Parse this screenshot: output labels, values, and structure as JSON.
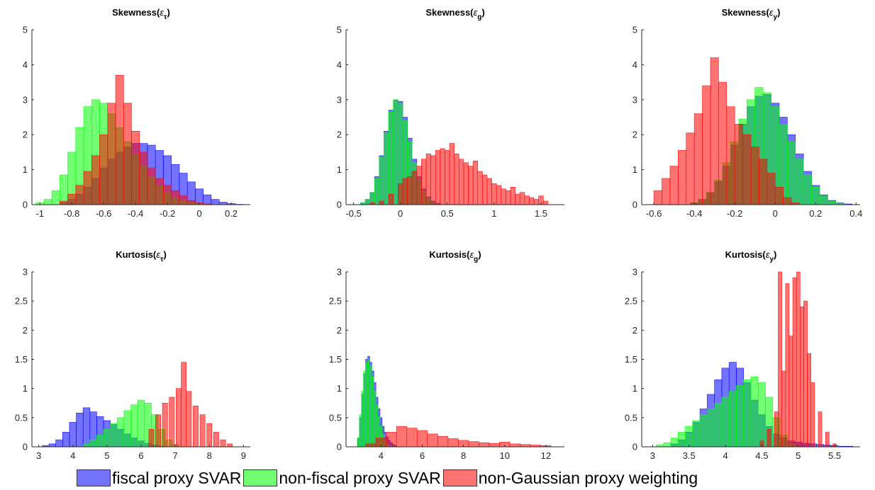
{
  "legend": {
    "items": [
      {
        "label": "fiscal proxy SVAR",
        "color": "#0000ff"
      },
      {
        "label": "non-fiscal proxy SVAR",
        "color": "#00ff00"
      },
      {
        "label": "non-Gaussian proxy weighting",
        "color": "#ff0000"
      }
    ]
  },
  "chart_data": [
    {
      "type": "bar",
      "title": "Skewness(ε_τ)",
      "title_parts": {
        "main": "Skewness(",
        "symbol": "ε",
        "sub": "τ",
        "close": ")"
      },
      "xlim": [
        -1.05,
        0.32
      ],
      "ylim": [
        0,
        5
      ],
      "xticks": [
        "-1",
        "-0.8",
        "-0.6",
        "-0.4",
        "-0.2",
        "0",
        "0.2"
      ],
      "xtick_values": [
        -1,
        -0.8,
        -0.6,
        -0.4,
        -0.2,
        0,
        0.2
      ],
      "yticks": [
        "0",
        "1",
        "2",
        "3",
        "4",
        "5"
      ],
      "ytick_values": [
        0,
        1,
        2,
        3,
        4,
        5
      ],
      "series": [
        {
          "name": "fiscal proxy SVAR",
          "color": "#0000ff",
          "x": [
            -0.85,
            -0.8,
            -0.75,
            -0.7,
            -0.65,
            -0.6,
            -0.55,
            -0.5,
            -0.45,
            -0.4,
            -0.35,
            -0.3,
            -0.25,
            -0.2,
            -0.15,
            -0.1,
            -0.05,
            0,
            0.05,
            0.1,
            0.15,
            0.2,
            0.25
          ],
          "y": [
            0.05,
            0.15,
            0.3,
            0.5,
            0.75,
            1.05,
            1.3,
            1.5,
            1.65,
            1.75,
            1.75,
            1.7,
            1.55,
            1.4,
            1.15,
            0.9,
            0.65,
            0.45,
            0.28,
            0.15,
            0.07,
            0.03,
            0.01
          ]
        },
        {
          "name": "non-fiscal proxy SVAR",
          "color": "#00ff00",
          "x": [
            -1,
            -0.95,
            -0.9,
            -0.85,
            -0.8,
            -0.75,
            -0.7,
            -0.65,
            -0.6,
            -0.55,
            -0.5,
            -0.45,
            -0.4,
            -0.35,
            -0.3,
            -0.25,
            -0.2,
            -0.15,
            -0.1,
            -0.05,
            0,
            0.05
          ],
          "y": [
            0.05,
            0.15,
            0.4,
            0.85,
            1.5,
            2.2,
            2.8,
            3.0,
            2.9,
            2.6,
            2.2,
            1.8,
            1.45,
            1.1,
            0.8,
            0.55,
            0.35,
            0.2,
            0.1,
            0.05,
            0.02,
            0.01
          ]
        },
        {
          "name": "non-Gaussian proxy weighting",
          "color": "#ff0000",
          "x": [
            -0.85,
            -0.8,
            -0.75,
            -0.7,
            -0.65,
            -0.6,
            -0.55,
            -0.5,
            -0.45,
            -0.4,
            -0.35,
            -0.3,
            -0.25,
            -0.2,
            -0.15,
            -0.1,
            -0.05,
            0,
            0.05
          ],
          "y": [
            0.1,
            0.3,
            0.55,
            0.95,
            1.4,
            2.0,
            2.9,
            3.7,
            2.9,
            2.1,
            1.5,
            1.05,
            0.75,
            0.55,
            0.4,
            0.25,
            0.12,
            0.05,
            0.02
          ]
        }
      ]
    },
    {
      "type": "bar",
      "title": "Skewness(ε_g)",
      "title_parts": {
        "main": "Skewness(",
        "symbol": "ε",
        "sub": "g",
        "close": ")"
      },
      "xlim": [
        -0.58,
        1.75
      ],
      "ylim": [
        0,
        5
      ],
      "xticks": [
        "-0.5",
        "0",
        "0.5",
        "1",
        "1.5"
      ],
      "xtick_values": [
        -0.5,
        0,
        0.5,
        1,
        1.5
      ],
      "yticks": [
        "0",
        "1",
        "2",
        "3",
        "4",
        "5"
      ],
      "ytick_values": [
        0,
        1,
        2,
        3,
        4,
        5
      ],
      "series": [
        {
          "name": "fiscal proxy SVAR",
          "color": "#0000ff",
          "x": [
            -0.4,
            -0.35,
            -0.3,
            -0.25,
            -0.2,
            -0.15,
            -0.1,
            -0.05,
            0,
            0.05,
            0.1,
            0.15,
            0.2,
            0.25,
            0.3,
            0.35,
            0.4
          ],
          "y": [
            0.05,
            0.15,
            0.35,
            0.8,
            1.4,
            2.1,
            2.7,
            3.0,
            2.95,
            2.5,
            1.9,
            1.3,
            0.8,
            0.45,
            0.22,
            0.1,
            0.04
          ]
        },
        {
          "name": "non-fiscal proxy SVAR",
          "color": "#00ff00",
          "x": [
            -0.4,
            -0.35,
            -0.3,
            -0.25,
            -0.2,
            -0.15,
            -0.1,
            -0.05,
            0,
            0.05,
            0.1,
            0.15,
            0.2,
            0.25,
            0.3,
            0.35
          ],
          "y": [
            0.05,
            0.15,
            0.35,
            0.75,
            1.35,
            2.05,
            2.65,
            3.0,
            2.9,
            2.4,
            1.8,
            1.2,
            0.72,
            0.4,
            0.2,
            0.08
          ]
        },
        {
          "name": "non-Gaussian proxy weighting",
          "color": "#ff0000",
          "x": [
            -0.3,
            -0.2,
            -0.1,
            0,
            0.05,
            0.1,
            0.15,
            0.2,
            0.25,
            0.3,
            0.35,
            0.4,
            0.45,
            0.5,
            0.55,
            0.6,
            0.65,
            0.7,
            0.75,
            0.8,
            0.85,
            0.9,
            0.95,
            1.0,
            1.05,
            1.1,
            1.15,
            1.2,
            1.25,
            1.3,
            1.35,
            1.4,
            1.45,
            1.5,
            1.55
          ],
          "y": [
            0.05,
            0.1,
            0.3,
            0.6,
            0.75,
            0.8,
            0.95,
            1.1,
            1.3,
            1.45,
            1.4,
            1.55,
            1.6,
            1.55,
            1.75,
            1.45,
            1.3,
            1.2,
            1.1,
            1.25,
            0.95,
            0.85,
            0.75,
            0.6,
            0.55,
            0.45,
            0.4,
            0.5,
            0.3,
            0.35,
            0.25,
            0.2,
            0.15,
            0.25,
            0.1
          ]
        }
      ]
    },
    {
      "type": "bar",
      "title": "Skewness(ε_y)",
      "title_parts": {
        "main": "Skewness(",
        "symbol": "ε",
        "sub": "y",
        "close": ")"
      },
      "xlim": [
        -0.66,
        0.42
      ],
      "ylim": [
        0,
        5
      ],
      "xticks": [
        "-0.6",
        "-0.4",
        "-0.2",
        "0",
        "0.2",
        "0.4"
      ],
      "xtick_values": [
        -0.6,
        -0.4,
        -0.2,
        0,
        0.2,
        0.4
      ],
      "yticks": [
        "0",
        "1",
        "2",
        "3",
        "4",
        "5"
      ],
      "ytick_values": [
        0,
        1,
        2,
        3,
        4,
        5
      ],
      "series": [
        {
          "name": "fiscal proxy SVAR",
          "color": "#0000ff",
          "x": [
            -0.4,
            -0.36,
            -0.32,
            -0.28,
            -0.24,
            -0.2,
            -0.16,
            -0.12,
            -0.08,
            -0.04,
            0,
            0.04,
            0.08,
            0.12,
            0.16,
            0.2,
            0.24,
            0.28,
            0.32,
            0.36
          ],
          "y": [
            0.05,
            0.15,
            0.35,
            0.65,
            1.1,
            1.7,
            2.3,
            2.8,
            3.1,
            3.15,
            2.9,
            2.5,
            2.0,
            1.45,
            0.95,
            0.55,
            0.28,
            0.12,
            0.05,
            0.02
          ]
        },
        {
          "name": "non-fiscal proxy SVAR",
          "color": "#00ff00",
          "x": [
            -0.4,
            -0.36,
            -0.32,
            -0.28,
            -0.24,
            -0.2,
            -0.16,
            -0.12,
            -0.08,
            -0.04,
            0,
            0.04,
            0.08,
            0.12,
            0.16,
            0.2,
            0.24,
            0.28,
            0.32
          ],
          "y": [
            0.05,
            0.15,
            0.35,
            0.7,
            1.2,
            1.8,
            2.45,
            3.0,
            3.35,
            3.2,
            2.8,
            2.3,
            1.8,
            1.3,
            0.85,
            0.5,
            0.25,
            0.1,
            0.04
          ]
        },
        {
          "name": "non-Gaussian proxy weighting",
          "color": "#ff0000",
          "x": [
            -0.58,
            -0.54,
            -0.5,
            -0.46,
            -0.42,
            -0.38,
            -0.34,
            -0.3,
            -0.26,
            -0.22,
            -0.18,
            -0.14,
            -0.1,
            -0.06,
            -0.02,
            0.02,
            0.06,
            0.1
          ],
          "y": [
            0.4,
            0.75,
            1.1,
            1.55,
            2.05,
            2.6,
            3.4,
            4.2,
            3.5,
            2.8,
            2.3,
            2.0,
            1.65,
            1.3,
            0.9,
            0.5,
            0.2,
            0.05
          ]
        }
      ]
    },
    {
      "type": "bar",
      "title": "Kurtosis(ε_τ)",
      "title_parts": {
        "main": "Kurtosis(",
        "symbol": "ε",
        "sub": "τ",
        "close": ")"
      },
      "xlim": [
        2.8,
        9.2
      ],
      "ylim": [
        0,
        3
      ],
      "xticks": [
        "3",
        "4",
        "5",
        "6",
        "7",
        "8",
        "9"
      ],
      "xtick_values": [
        3,
        4,
        5,
        6,
        7,
        8,
        9
      ],
      "yticks": [
        "0",
        "0.5",
        "1",
        "1.5",
        "2",
        "2.5",
        "3"
      ],
      "ytick_values": [
        0,
        0.5,
        1,
        1.5,
        2,
        2.5,
        3
      ],
      "series": [
        {
          "name": "fiscal proxy SVAR",
          "color": "#0000ff",
          "x": [
            3.2,
            3.4,
            3.6,
            3.8,
            4.0,
            4.2,
            4.4,
            4.6,
            4.8,
            5.0,
            5.2,
            5.4,
            5.6,
            5.8,
            6.0,
            6.2,
            6.4,
            6.6
          ],
          "y": [
            0.02,
            0.05,
            0.12,
            0.25,
            0.42,
            0.58,
            0.67,
            0.6,
            0.52,
            0.45,
            0.38,
            0.3,
            0.22,
            0.15,
            0.1,
            0.06,
            0.03,
            0.01
          ]
        },
        {
          "name": "non-fiscal proxy SVAR",
          "color": "#00ff00",
          "x": [
            4.4,
            4.6,
            4.8,
            5.0,
            5.2,
            5.4,
            5.6,
            5.8,
            6.0,
            6.2,
            6.4,
            6.6,
            6.8,
            7.0
          ],
          "y": [
            0.05,
            0.12,
            0.2,
            0.3,
            0.4,
            0.5,
            0.62,
            0.72,
            0.8,
            0.75,
            0.55,
            0.3,
            0.12,
            0.04
          ]
        },
        {
          "name": "non-Gaussian proxy weighting",
          "color": "#ff0000",
          "x": [
            6.3,
            6.5,
            6.7,
            6.9,
            7.1,
            7.25,
            7.4,
            7.6,
            7.8,
            8.0,
            8.2,
            8.4,
            8.6
          ],
          "y": [
            0.3,
            0.55,
            0.75,
            0.85,
            1.0,
            1.45,
            0.95,
            0.7,
            0.55,
            0.4,
            0.25,
            0.12,
            0.05
          ]
        }
      ]
    },
    {
      "type": "bar",
      "title": "Kurtosis(ε_g)",
      "title_parts": {
        "main": "Kurtosis(",
        "symbol": "ε",
        "sub": "g",
        "close": ")"
      },
      "xlim": [
        2.3,
        12.9
      ],
      "ylim": [
        0,
        3
      ],
      "xticks": [
        "4",
        "6",
        "8",
        "10",
        "12"
      ],
      "xtick_values": [
        4,
        6,
        8,
        10,
        12
      ],
      "yticks": [
        "0",
        "0.5",
        "1",
        "1.5",
        "2",
        "2.5",
        "3"
      ],
      "ytick_values": [
        0,
        0.5,
        1,
        1.5,
        2,
        2.5,
        3
      ],
      "series": [
        {
          "name": "fiscal proxy SVAR",
          "color": "#0000ff",
          "x": [
            2.9,
            3.0,
            3.1,
            3.2,
            3.3,
            3.4,
            3.5,
            3.6,
            3.7,
            3.8,
            3.9,
            4.0,
            4.1,
            4.2,
            4.3,
            4.4,
            4.5,
            4.6,
            4.7
          ],
          "y": [
            0.15,
            0.5,
            0.9,
            1.25,
            1.5,
            1.55,
            1.45,
            1.3,
            1.1,
            0.85,
            0.65,
            0.5,
            0.35,
            0.25,
            0.17,
            0.11,
            0.07,
            0.04,
            0.02
          ]
        },
        {
          "name": "non-fiscal proxy SVAR",
          "color": "#00ff00",
          "x": [
            2.9,
            3.0,
            3.1,
            3.2,
            3.3,
            3.4,
            3.5,
            3.6,
            3.7,
            3.8,
            3.9,
            4.0,
            4.1,
            4.2,
            4.3,
            4.4
          ],
          "y": [
            0.15,
            0.55,
            0.95,
            1.3,
            1.45,
            1.5,
            1.4,
            1.2,
            0.95,
            0.72,
            0.52,
            0.35,
            0.22,
            0.12,
            0.06,
            0.02
          ]
        },
        {
          "name": "non-Gaussian proxy weighting",
          "color": "#ff0000",
          "x": [
            3.5,
            4.0,
            4.5,
            5.0,
            5.5,
            6.0,
            6.5,
            7.0,
            7.5,
            8.0,
            8.5,
            9.0,
            9.5,
            10.0,
            10.5,
            11.0,
            11.5,
            12.0
          ],
          "y": [
            0.05,
            0.15,
            0.25,
            0.35,
            0.32,
            0.28,
            0.22,
            0.18,
            0.14,
            0.11,
            0.09,
            0.07,
            0.06,
            0.08,
            0.05,
            0.04,
            0.03,
            0.02
          ]
        }
      ]
    },
    {
      "type": "bar",
      "title": "Kurtosis(ε_y)",
      "title_parts": {
        "main": "Kurtosis(",
        "symbol": "ε",
        "sub": "y",
        "close": ")"
      },
      "xlim": [
        2.85,
        5.85
      ],
      "ylim": [
        0,
        3
      ],
      "xticks": [
        "3",
        "3.5",
        "4",
        "4.5",
        "5",
        "5.5"
      ],
      "xtick_values": [
        3,
        3.5,
        4,
        4.5,
        5,
        5.5
      ],
      "yticks": [
        "0",
        "0.5",
        "1",
        "1.5",
        "2",
        "2.5",
        "3"
      ],
      "ytick_values": [
        0,
        0.5,
        1,
        1.5,
        2,
        2.5,
        3
      ],
      "series": [
        {
          "name": "fiscal proxy SVAR",
          "color": "#0000ff",
          "x": [
            3.3,
            3.4,
            3.5,
            3.6,
            3.7,
            3.8,
            3.9,
            4.0,
            4.1,
            4.2,
            4.3,
            4.4,
            4.5,
            4.6,
            4.7,
            4.8,
            4.9,
            5.0,
            5.1,
            5.2,
            5.3,
            5.4,
            5.5,
            5.6,
            5.7
          ],
          "y": [
            0.05,
            0.12,
            0.25,
            0.42,
            0.65,
            0.9,
            1.15,
            1.35,
            1.45,
            1.35,
            1.1,
            0.8,
            0.55,
            0.35,
            0.22,
            0.15,
            0.1,
            0.08,
            0.06,
            0.05,
            0.04,
            0.03,
            0.02,
            0.01,
            0.01
          ]
        },
        {
          "name": "non-fiscal proxy SVAR",
          "color": "#00ff00",
          "x": [
            3.1,
            3.2,
            3.3,
            3.4,
            3.5,
            3.6,
            3.7,
            3.8,
            3.9,
            4.0,
            4.1,
            4.2,
            4.3,
            4.4,
            4.5,
            4.6,
            4.7,
            4.8,
            4.9
          ],
          "y": [
            0.03,
            0.07,
            0.15,
            0.25,
            0.35,
            0.45,
            0.55,
            0.65,
            0.75,
            0.85,
            0.95,
            1.05,
            1.15,
            1.2,
            1.1,
            0.85,
            0.5,
            0.2,
            0.05
          ]
        },
        {
          "name": "non-Gaussian proxy weighting",
          "color": "#ff0000",
          "x": [
            4.5,
            4.6,
            4.7,
            4.75,
            4.8,
            4.85,
            4.9,
            4.95,
            5.0,
            5.05,
            5.1,
            5.15,
            5.2,
            5.3,
            5.4,
            5.5
          ],
          "y": [
            0.1,
            0.3,
            0.6,
            3.0,
            1.3,
            2.8,
            1.9,
            2.9,
            3.0,
            2.4,
            2.5,
            1.6,
            1.1,
            0.6,
            0.25,
            0.05
          ]
        }
      ]
    }
  ]
}
